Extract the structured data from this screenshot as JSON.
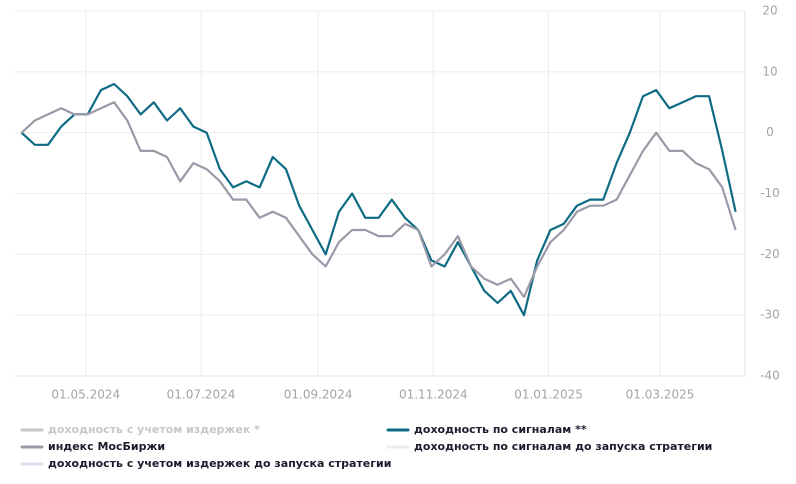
{
  "chart_data": {
    "type": "line",
    "x": [
      "2024-03-28",
      "2024-04-04",
      "2024-04-11",
      "2024-04-18",
      "2024-04-25",
      "2024-05-02",
      "2024-05-09",
      "2024-05-16",
      "2024-05-23",
      "2024-05-30",
      "2024-06-06",
      "2024-06-13",
      "2024-06-20",
      "2024-06-27",
      "2024-07-04",
      "2024-07-11",
      "2024-07-18",
      "2024-07-25",
      "2024-08-01",
      "2024-08-08",
      "2024-08-15",
      "2024-08-22",
      "2024-08-29",
      "2024-09-05",
      "2024-09-12",
      "2024-09-19",
      "2024-09-26",
      "2024-10-03",
      "2024-10-10",
      "2024-10-17",
      "2024-10-24",
      "2024-10-31",
      "2024-11-07",
      "2024-11-14",
      "2024-11-21",
      "2024-11-28",
      "2024-12-05",
      "2024-12-12",
      "2024-12-19",
      "2024-12-26",
      "2025-01-02",
      "2025-01-09",
      "2025-01-16",
      "2025-01-23",
      "2025-01-30",
      "2025-02-06",
      "2025-02-13",
      "2025-02-20",
      "2025-02-27",
      "2025-03-06",
      "2025-03-13",
      "2025-03-20",
      "2025-03-27",
      "2025-04-03",
      "2025-04-10"
    ],
    "xlim": [
      "2024-03-24",
      "2025-04-15"
    ],
    "xticks": [
      {
        "value": "2024-05-01",
        "label": "01.05.2024"
      },
      {
        "value": "2024-07-01",
        "label": "01.07.2024"
      },
      {
        "value": "2024-09-01",
        "label": "01.09.2024"
      },
      {
        "value": "2024-11-01",
        "label": "01.11.2024"
      },
      {
        "value": "2025-01-01",
        "label": "01.01.2025"
      },
      {
        "value": "2025-03-01",
        "label": "01.03.2025"
      }
    ],
    "ylim": [
      -40,
      20
    ],
    "yticks": [
      -40,
      -30,
      -20,
      -10,
      0,
      10,
      20
    ],
    "grid": true,
    "series": [
      {
        "name": "доходность с учетом издержек *",
        "color": "#c6c6cc",
        "visible": false
      },
      {
        "name": "доходность по сигналам **",
        "color": "#0e6b84",
        "values": [
          0,
          -2,
          -2,
          1,
          3,
          3,
          7,
          8,
          6,
          3,
          5,
          2,
          4,
          1,
          0,
          -6,
          -9,
          -8,
          -9,
          -4,
          -6,
          -12,
          -16,
          -20,
          -13,
          -10,
          -14,
          -14,
          -11,
          -14,
          -16,
          -21,
          -22,
          -18,
          -22,
          -26,
          -28,
          -26,
          -30,
          -21,
          -16,
          -15,
          -12,
          -11,
          -11,
          -5,
          0,
          6,
          7,
          4,
          5,
          6,
          6,
          -3,
          -13
        ]
      },
      {
        "name": "индекс МосБиржи",
        "color": "#9a99a8",
        "values": [
          0,
          2,
          3,
          4,
          3,
          3,
          4,
          5,
          2,
          -3,
          -3,
          -4,
          -8,
          -5,
          -6,
          -8,
          -11,
          -11,
          -14,
          -13,
          -14,
          -17,
          -20,
          -22,
          -18,
          -16,
          -16,
          -17,
          -17,
          -15,
          -16,
          -22,
          -20,
          -17,
          -22,
          -24,
          -25,
          -24,
          -27,
          -22,
          -18,
          -16,
          -13,
          -12,
          -12,
          -11,
          -7,
          -3,
          0,
          -3,
          -3,
          -5,
          -6,
          -9,
          -16
        ]
      },
      {
        "name": "доходность по сигналам до запуска стратегии",
        "color": "#ececf0",
        "visible": false
      },
      {
        "name": "доходность с учетом издержек до запуска стратегии",
        "color": "#dcdcef",
        "visible": false
      }
    ]
  }
}
